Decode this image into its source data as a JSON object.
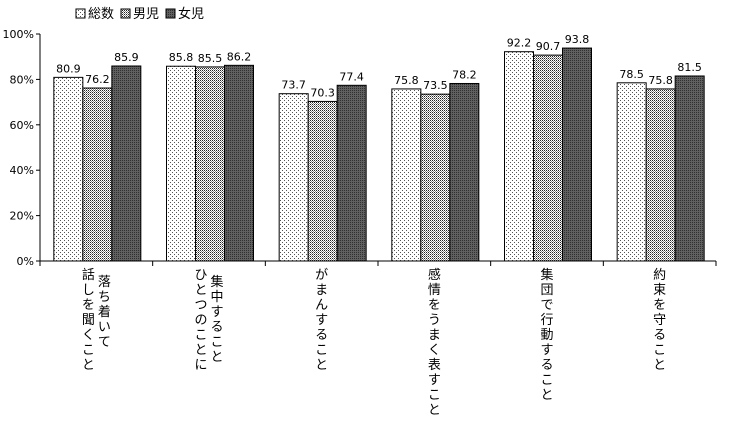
{
  "chart_data": {
    "type": "bar",
    "categories": [
      "話し落ち着いて聞くこと",
      "ひとつのことに集中すること",
      "がまんすること",
      "感情をうまく表すこと",
      "集団で行動すること",
      "約束を守ること"
    ],
    "category_columns": [
      [
        "話しを聞くこと",
        "落ち着いて"
      ],
      [
        "ひとつのことに",
        "集中すること"
      ],
      [
        "がまんすること"
      ],
      [
        "感情をうまく表すこと"
      ],
      [
        "集団で行動すること"
      ],
      [
        "約束を守ること"
      ]
    ],
    "series": [
      {
        "name": "総数",
        "values": [
          80.9,
          85.8,
          73.7,
          75.8,
          92.2,
          78.5
        ],
        "labels": [
          "80.9",
          "85.8",
          "73.7",
          "75.8",
          "92.2",
          "78.5"
        ],
        "pattern": "dots"
      },
      {
        "name": "男児",
        "values": [
          76.2,
          85.5,
          70.3,
          73.5,
          90.7,
          75.8
        ],
        "labels": [
          "76.2",
          "85.5",
          "70.3",
          "73.5",
          "90.7",
          "75.8"
        ],
        "pattern": "dense"
      },
      {
        "name": "女児",
        "values": [
          85.9,
          86.2,
          77.4,
          78.2,
          93.8,
          81.5
        ],
        "labels": [
          "85.9",
          "86.2",
          "77.4",
          "78.2",
          "93.8",
          "81.5"
        ],
        "pattern": "dark"
      }
    ],
    "ylim": [
      0,
      100
    ],
    "yticks": [
      "0%",
      "20%",
      "40%",
      "60%",
      "80%",
      "100%"
    ],
    "legend_position": "top-left",
    "grid": false
  }
}
